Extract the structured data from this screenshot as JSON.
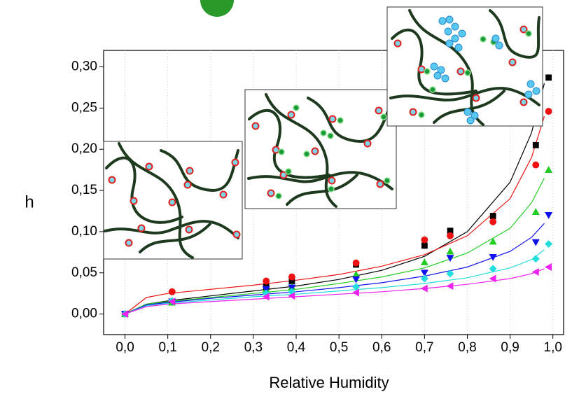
{
  "chart_data": {
    "type": "scatter",
    "xlabel": "Relative Humidity",
    "ylabel": "h",
    "xlim": [
      -0.05,
      1.025
    ],
    "ylim": [
      -0.025,
      0.32
    ],
    "xticks": [
      {
        "value": 0,
        "label": "0,0"
      },
      {
        "value": 0.1,
        "label": "0,1"
      },
      {
        "value": 0.2,
        "label": "0,2"
      },
      {
        "value": 0.3,
        "label": "0,3"
      },
      {
        "value": 0.4,
        "label": "0,4"
      },
      {
        "value": 0.5,
        "label": "0,5"
      },
      {
        "value": 0.6,
        "label": "0,6"
      },
      {
        "value": 0.7,
        "label": "0,7"
      },
      {
        "value": 0.8,
        "label": "0,8"
      },
      {
        "value": 0.9,
        "label": "0,9"
      },
      {
        "value": 1,
        "label": "1,0"
      }
    ],
    "yticks": [
      {
        "value": 0,
        "label": "0,00"
      },
      {
        "value": 0.05,
        "label": "0,05"
      },
      {
        "value": 0.1,
        "label": "0,10"
      },
      {
        "value": 0.15,
        "label": "0,15"
      },
      {
        "value": 0.2,
        "label": "0,20"
      },
      {
        "value": 0.25,
        "label": "0,25"
      },
      {
        "value": 0.3,
        "label": "0,30"
      }
    ],
    "grid": "x",
    "x": [
      0,
      0.11,
      0.33,
      0.39,
      0.54,
      0.7,
      0.76,
      0.86,
      0.96,
      0.99
    ],
    "series": [
      {
        "color": "#000000",
        "marker": "square",
        "values": [
          0,
          0.015,
          0.033,
          0.04,
          0.06,
          0.083,
          0.101,
          0.119,
          0.205,
          0.287
        ]
      },
      {
        "color": "#ee1111",
        "marker": "circle",
        "values": [
          0,
          0.027,
          0.04,
          0.045,
          0.062,
          0.09,
          0.095,
          0.112,
          0.181,
          0.246
        ]
      },
      {
        "color": "#22cc22",
        "marker": "triangle-up",
        "values": [
          0,
          0.014,
          0.03,
          0.033,
          0.048,
          0.063,
          0.076,
          0.088,
          0.124,
          0.175
        ]
      },
      {
        "color": "#1111ee",
        "marker": "triangle-down",
        "values": [
          0,
          0.015,
          0.03,
          0.032,
          0.042,
          0.05,
          0.068,
          0.069,
          0.087,
          0.12
        ]
      },
      {
        "color": "#22dddd",
        "marker": "diamond",
        "values": [
          0,
          0.016,
          0.025,
          0.027,
          0.033,
          0.043,
          0.049,
          0.055,
          0.067,
          0.085
        ]
      },
      {
        "color": "#ee22ee",
        "marker": "triangle-left",
        "values": [
          0,
          0.015,
          0.021,
          0.022,
          0.026,
          0.031,
          0.034,
          0.043,
          0.051,
          0.057
        ]
      }
    ],
    "fit_x": [
      0,
      0.05,
      0.1,
      0.2,
      0.3,
      0.4,
      0.5,
      0.6,
      0.7,
      0.8,
      0.9,
      0.95,
      0.98
    ],
    "fits": [
      {
        "color": "#000000",
        "values": [
          0,
          0.012,
          0.016,
          0.022,
          0.028,
          0.034,
          0.042,
          0.053,
          0.07,
          0.1,
          0.16,
          0.22,
          0.28
        ]
      },
      {
        "color": "#ee1111",
        "values": [
          0,
          0.02,
          0.025,
          0.03,
          0.035,
          0.041,
          0.048,
          0.058,
          0.072,
          0.095,
          0.14,
          0.19,
          0.24
        ]
      },
      {
        "color": "#22cc22",
        "values": [
          0,
          0.012,
          0.015,
          0.02,
          0.025,
          0.03,
          0.037,
          0.045,
          0.056,
          0.074,
          0.104,
          0.135,
          0.165
        ]
      },
      {
        "color": "#1111ee",
        "values": [
          0,
          0.011,
          0.014,
          0.019,
          0.023,
          0.027,
          0.032,
          0.038,
          0.046,
          0.057,
          0.076,
          0.093,
          0.11
        ]
      },
      {
        "color": "#22dddd",
        "values": [
          0,
          0.01,
          0.013,
          0.017,
          0.021,
          0.024,
          0.028,
          0.032,
          0.037,
          0.044,
          0.056,
          0.066,
          0.078
        ]
      },
      {
        "color": "#ee22ee",
        "values": [
          0,
          0.009,
          0.012,
          0.015,
          0.018,
          0.021,
          0.024,
          0.027,
          0.031,
          0.036,
          0.043,
          0.049,
          0.055
        ]
      }
    ]
  }
}
